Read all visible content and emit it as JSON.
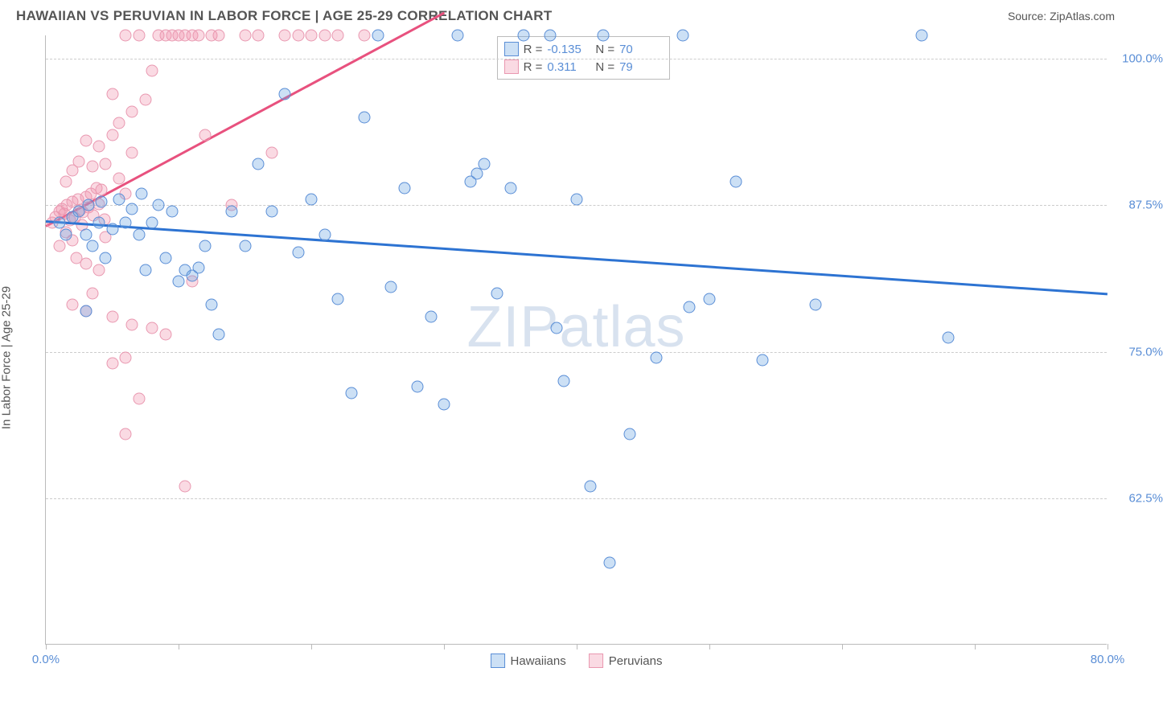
{
  "title": "HAWAIIAN VS PERUVIAN IN LABOR FORCE | AGE 25-29 CORRELATION CHART",
  "source": "Source: ZipAtlas.com",
  "y_axis_label": "In Labor Force | Age 25-29",
  "watermark_a": "ZIP",
  "watermark_b": "atlas",
  "chart": {
    "type": "scatter",
    "xlim": [
      0,
      80
    ],
    "ylim": [
      50,
      102
    ],
    "x_ticks": [
      0,
      10,
      20,
      30,
      40,
      50,
      60,
      70,
      80
    ],
    "x_tick_labels": {
      "0": "0.0%",
      "80": "80.0%"
    },
    "y_ticks": [
      62.5,
      75.0,
      87.5,
      100.0
    ],
    "y_tick_labels": [
      "62.5%",
      "75.0%",
      "87.5%",
      "100.0%"
    ],
    "background_color": "#ffffff",
    "grid_color": "#cccccc",
    "axis_color": "#bbbbbb",
    "tick_label_color": "#5a8ed6",
    "series": [
      {
        "name": "Hawaiians",
        "label": "Hawaiians",
        "fill": "rgba(110,165,225,0.35)",
        "stroke": "#5a8ed6",
        "line_color": "#2d73d2",
        "R_label": "R =",
        "R": "-0.135",
        "N_label": "N =",
        "N": "70",
        "trend": {
          "x1": 0,
          "y1": 86.2,
          "x2": 80,
          "y2": 80.0
        },
        "points": [
          [
            1,
            86
          ],
          [
            1.5,
            85
          ],
          [
            2,
            86.5
          ],
          [
            2.5,
            87
          ],
          [
            3,
            85
          ],
          [
            3.2,
            87.5
          ],
          [
            3.5,
            84
          ],
          [
            4,
            86
          ],
          [
            4.2,
            87.8
          ],
          [
            4.5,
            83
          ],
          [
            5,
            85.5
          ],
          [
            5.5,
            88
          ],
          [
            6,
            86
          ],
          [
            6.5,
            87.2
          ],
          [
            7,
            85
          ],
          [
            7.2,
            88.5
          ],
          [
            7.5,
            82
          ],
          [
            8,
            86
          ],
          [
            8.5,
            87.5
          ],
          [
            3,
            78.5
          ],
          [
            9,
            83
          ],
          [
            9.5,
            87
          ],
          [
            10,
            81
          ],
          [
            10.5,
            82
          ],
          [
            11,
            81.5
          ],
          [
            11.5,
            82.2
          ],
          [
            12,
            84
          ],
          [
            12.5,
            79
          ],
          [
            13,
            76.5
          ],
          [
            14,
            87
          ],
          [
            15,
            84
          ],
          [
            16,
            91
          ],
          [
            17,
            87
          ],
          [
            18,
            97
          ],
          [
            19,
            83.5
          ],
          [
            20,
            88
          ],
          [
            21,
            85
          ],
          [
            22,
            79.5
          ],
          [
            23,
            71.5
          ],
          [
            24,
            95
          ],
          [
            25,
            102
          ],
          [
            26,
            80.5
          ],
          [
            27,
            89
          ],
          [
            28,
            72
          ],
          [
            29,
            78
          ],
          [
            30,
            70.5
          ],
          [
            31,
            102
          ],
          [
            32,
            89.5
          ],
          [
            32.5,
            90.2
          ],
          [
            33,
            91
          ],
          [
            34,
            80
          ],
          [
            35,
            89
          ],
          [
            36,
            102
          ],
          [
            38,
            102
          ],
          [
            38.5,
            77
          ],
          [
            39,
            72.5
          ],
          [
            40,
            88
          ],
          [
            41,
            63.5
          ],
          [
            42,
            102
          ],
          [
            42.5,
            57
          ],
          [
            44,
            68
          ],
          [
            46,
            74.5
          ],
          [
            48,
            102
          ],
          [
            48.5,
            78.8
          ],
          [
            50,
            79.5
          ],
          [
            52,
            89.5
          ],
          [
            54,
            74.3
          ],
          [
            58,
            79
          ],
          [
            68,
            76.2
          ],
          [
            66,
            102
          ]
        ]
      },
      {
        "name": "Peruvians",
        "label": "Peruvians",
        "fill": "rgba(240,150,175,0.35)",
        "stroke": "#e998b0",
        "line_color": "#e8517e",
        "R_label": "R =",
        "R": "0.311",
        "N_label": "N =",
        "N": "79",
        "trend": {
          "x1": 0,
          "y1": 85.8,
          "x2": 30,
          "y2": 104
        },
        "points": [
          [
            0.5,
            86
          ],
          [
            0.7,
            86.5
          ],
          [
            1,
            87
          ],
          [
            1.2,
            87.2
          ],
          [
            1.4,
            86.8
          ],
          [
            1.6,
            87.5
          ],
          [
            1.8,
            86.2
          ],
          [
            2,
            87.8
          ],
          [
            2.2,
            86.4
          ],
          [
            2.4,
            88
          ],
          [
            2.6,
            87.1
          ],
          [
            2.8,
            86.9
          ],
          [
            3,
            88.2
          ],
          [
            3.2,
            87.3
          ],
          [
            3.4,
            88.5
          ],
          [
            3.6,
            86.6
          ],
          [
            3.8,
            89
          ],
          [
            4,
            87.6
          ],
          [
            4.2,
            88.8
          ],
          [
            4.4,
            86.3
          ],
          [
            1,
            84
          ],
          [
            1.5,
            85.2
          ],
          [
            2,
            84.5
          ],
          [
            2.3,
            83
          ],
          [
            2.7,
            85.8
          ],
          [
            3,
            82.5
          ],
          [
            3.5,
            80
          ],
          [
            4,
            82
          ],
          [
            4.5,
            84.8
          ],
          [
            1.5,
            89.5
          ],
          [
            2,
            90.5
          ],
          [
            2.5,
            91.2
          ],
          [
            3,
            93
          ],
          [
            3.5,
            90.8
          ],
          [
            4,
            92.5
          ],
          [
            4.5,
            91
          ],
          [
            5,
            93.5
          ],
          [
            5.5,
            89.8
          ],
          [
            6,
            88.5
          ],
          [
            6.5,
            92
          ],
          [
            5,
            97
          ],
          [
            5.5,
            94.5
          ],
          [
            6,
            102
          ],
          [
            6.5,
            95.5
          ],
          [
            7,
            102
          ],
          [
            7.5,
            96.5
          ],
          [
            8,
            99
          ],
          [
            8.5,
            102
          ],
          [
            9,
            102
          ],
          [
            9.5,
            102
          ],
          [
            10,
            102
          ],
          [
            10.5,
            102
          ],
          [
            11,
            102
          ],
          [
            11.5,
            102
          ],
          [
            12,
            93.5
          ],
          [
            12.5,
            102
          ],
          [
            13,
            102
          ],
          [
            14,
            87.5
          ],
          [
            15,
            102
          ],
          [
            16,
            102
          ],
          [
            17,
            92
          ],
          [
            18,
            102
          ],
          [
            19,
            102
          ],
          [
            20,
            102
          ],
          [
            21,
            102
          ],
          [
            22,
            102
          ],
          [
            24,
            102
          ],
          [
            5,
            78
          ],
          [
            6.5,
            77.3
          ],
          [
            8,
            77
          ],
          [
            5,
            74
          ],
          [
            6,
            74.5
          ],
          [
            9,
            76.5
          ],
          [
            7,
            71
          ],
          [
            6,
            68
          ],
          [
            10.5,
            63.5
          ],
          [
            2,
            79
          ],
          [
            3,
            78.5
          ],
          [
            11,
            81
          ]
        ]
      }
    ]
  },
  "legend_bottom": [
    {
      "key": "hawaiians",
      "label": "Hawaiians"
    },
    {
      "key": "peruvians",
      "label": "Peruvians"
    }
  ]
}
